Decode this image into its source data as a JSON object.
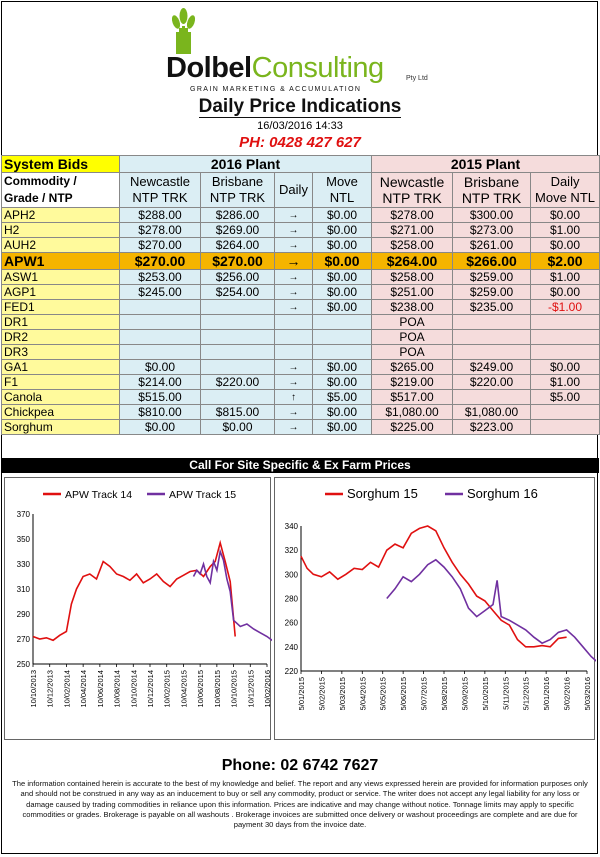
{
  "header": {
    "logo_part1": "Dolbel",
    "logo_part2": "Consulting",
    "logo_pty": "Pty Ltd",
    "logo_tagline": "GRAIN MARKETING & ACCUMULATION",
    "title": "Daily Price Indications",
    "datetime": "16/03/2016 14:33",
    "phone": "PH: 0428 427 627"
  },
  "table": {
    "system_bids": "System Bids",
    "plant_2016": "2016 Plant",
    "plant_2015": "2015 Plant",
    "commodity_header_line1": "Commodity /",
    "commodity_header_line2": "Grade / NTP",
    "col_newcastle_2016": "Newcastle NTP TRK",
    "col_brisbane_2016": "Brisbane NTP TRK",
    "col_daily_2016": "Daily",
    "col_move_2016": "Move NTL",
    "col_newcastle_2015": "Newcastle NTP TRK",
    "col_brisbane_2015": "Brisbane NTP TRK",
    "col_daily_2015": "Daily Move NTL",
    "rows": [
      {
        "grade": "APH2",
        "n16": "$288.00",
        "b16": "$286.00",
        "arrow": "→",
        "m16": "$0.00",
        "n15": "$278.00",
        "b15": "$300.00",
        "m15": "$0.00"
      },
      {
        "grade": "H2",
        "n16": "$278.00",
        "b16": "$269.00",
        "arrow": "→",
        "m16": "$0.00",
        "n15": "$271.00",
        "b15": "$273.00",
        "m15": "$1.00"
      },
      {
        "grade": "AUH2",
        "n16": "$270.00",
        "b16": "$264.00",
        "arrow": "→",
        "m16": "$0.00",
        "n15": "$258.00",
        "b15": "$261.00",
        "m15": "$0.00"
      },
      {
        "grade": "APW1",
        "n16": "$270.00",
        "b16": "$270.00",
        "arrow": "→",
        "m16": "$0.00",
        "n15": "$264.00",
        "b15": "$266.00",
        "m15": "$2.00"
      },
      {
        "grade": "ASW1",
        "n16": "$253.00",
        "b16": "$256.00",
        "arrow": "→",
        "m16": "$0.00",
        "n15": "$258.00",
        "b15": "$259.00",
        "m15": "$1.00"
      },
      {
        "grade": "AGP1",
        "n16": "$245.00",
        "b16": "$254.00",
        "arrow": "→",
        "m16": "$0.00",
        "n15": "$251.00",
        "b15": "$259.00",
        "m15": "$0.00"
      },
      {
        "grade": "FED1",
        "n16": "",
        "b16": "",
        "arrow": "→",
        "m16": "$0.00",
        "n15": "$238.00",
        "b15": "$235.00",
        "m15": "-$1.00"
      },
      {
        "grade": "DR1",
        "n16": "",
        "b16": "",
        "arrow": "",
        "m16": "",
        "n15": "POA",
        "b15": "",
        "m15": ""
      },
      {
        "grade": "DR2",
        "n16": "",
        "b16": "",
        "arrow": "",
        "m16": "",
        "n15": "POA",
        "b15": "",
        "m15": ""
      },
      {
        "grade": "DR3",
        "n16": "",
        "b16": "",
        "arrow": "",
        "m16": "",
        "n15": "POA",
        "b15": "",
        "m15": ""
      },
      {
        "grade": "GA1",
        "n16": "$0.00",
        "b16": "",
        "arrow": "→",
        "m16": "$0.00",
        "n15": "$265.00",
        "b15": "$249.00",
        "m15": "$0.00"
      },
      {
        "grade": "F1",
        "n16": "$214.00",
        "b16": "$220.00",
        "arrow": "→",
        "m16": "$0.00",
        "n15": "$219.00",
        "b15": "$220.00",
        "m15": "$1.00"
      },
      {
        "grade": "Canola",
        "n16": "$515.00",
        "b16": "",
        "arrow": "↑",
        "m16": "$5.00",
        "n15": "$517.00",
        "b15": "",
        "m15": "$5.00"
      },
      {
        "grade": "Chickpea",
        "n16": "$810.00",
        "b16": "$815.00",
        "arrow": "→",
        "m16": "$0.00",
        "n15": "$1,080.00",
        "b15": "$1,080.00",
        "m15": ""
      },
      {
        "grade": "Sorghum",
        "n16": "$0.00",
        "b16": "$0.00",
        "arrow": "→",
        "m16": "$0.00",
        "n15": "$225.00",
        "b15": "$223.00",
        "m15": ""
      }
    ]
  },
  "call_bar": "Call For Site Specific & Ex Farm Prices",
  "colors": {
    "red_series": "#e01010",
    "purple_series": "#7030a0",
    "plant_2016_bg": "#dbeef4",
    "plant_2015_bg": "#f5dcdc",
    "apw_highlight": "#f5b400"
  },
  "chart_data": [
    {
      "type": "line",
      "legend_position": "top",
      "grid": false,
      "ylim": [
        250,
        370
      ],
      "yticks": [
        250,
        270,
        290,
        310,
        330,
        350,
        370
      ],
      "xticks": [
        "10/10/2013",
        "10/12/2013",
        "10/02/2014",
        "10/04/2014",
        "10/06/2014",
        "10/08/2014",
        "10/10/2014",
        "10/12/2014",
        "10/02/2015",
        "10/04/2015",
        "10/06/2015",
        "10/08/2015",
        "10/10/2015",
        "10/12/2015",
        "10/02/2016"
      ],
      "series": [
        {
          "name": "APW Track 14",
          "color": "#e01010",
          "x": [
            0,
            0.4,
            0.8,
            1.2,
            1.6,
            2.0,
            2.3,
            2.6,
            3.0,
            3.4,
            3.8,
            4.2,
            4.6,
            5.0,
            5.4,
            5.8,
            6.2,
            6.6,
            7.0,
            7.4,
            7.8,
            8.2,
            8.6,
            9.0,
            9.4,
            9.8,
            10.2,
            10.6,
            10.9,
            11.2,
            11.5,
            11.8,
            12.1
          ],
          "y": [
            272,
            270,
            271,
            269,
            273,
            276,
            298,
            310,
            320,
            322,
            318,
            332,
            328,
            322,
            320,
            317,
            322,
            315,
            318,
            322,
            316,
            312,
            318,
            321,
            324,
            325,
            320,
            328,
            332,
            347,
            332,
            316,
            272
          ]
        },
        {
          "name": "APW Track 15",
          "color": "#7030a0",
          "x": [
            9.6,
            9.8,
            10.0,
            10.2,
            10.4,
            10.6,
            10.8,
            11.0,
            11.2,
            11.4,
            11.6,
            11.8,
            12.0,
            12.4,
            12.8,
            13.2,
            13.6,
            14.0,
            14.4,
            14.7
          ],
          "y": [
            320,
            325,
            322,
            330,
            320,
            315,
            332,
            325,
            340,
            333,
            318,
            308,
            285,
            280,
            282,
            278,
            275,
            272,
            268,
            262
          ]
        }
      ]
    },
    {
      "type": "line",
      "legend_position": "top",
      "grid": false,
      "ylim": [
        220,
        340
      ],
      "yticks": [
        220,
        240,
        260,
        280,
        300,
        320,
        340
      ],
      "xticks": [
        "5/01/2015",
        "5/02/2015",
        "5/03/2015",
        "5/04/2015",
        "5/05/2015",
        "5/06/2015",
        "5/07/2015",
        "5/08/2015",
        "5/09/2015",
        "5/10/2015",
        "5/11/2015",
        "5/12/2015",
        "5/01/2016",
        "5/02/2016",
        "5/03/2016"
      ],
      "series": [
        {
          "name": "Sorghum 15",
          "color": "#e01010",
          "x": [
            0,
            0.3,
            0.6,
            1.0,
            1.4,
            1.8,
            2.2,
            2.6,
            3.0,
            3.4,
            3.8,
            4.2,
            4.6,
            5.0,
            5.4,
            5.8,
            6.2,
            6.6,
            7.0,
            7.4,
            7.8,
            8.2,
            8.6,
            9.0,
            9.4,
            9.8,
            10.2,
            10.6,
            11.0,
            11.4,
            11.8,
            12.2,
            12.6,
            13.0
          ],
          "y": [
            315,
            305,
            300,
            298,
            302,
            296,
            300,
            305,
            304,
            310,
            306,
            320,
            325,
            322,
            334,
            338,
            340,
            336,
            322,
            310,
            300,
            292,
            282,
            278,
            270,
            262,
            258,
            246,
            240,
            240,
            241,
            240,
            247,
            248
          ]
        },
        {
          "name": "Sorghum 16",
          "color": "#7030a0",
          "x": [
            4.2,
            4.6,
            5.0,
            5.4,
            5.8,
            6.2,
            6.6,
            7.0,
            7.4,
            7.8,
            8.2,
            8.6,
            9.0,
            9.4,
            9.6,
            9.8,
            10.2,
            10.6,
            11.0,
            11.4,
            11.8,
            12.2,
            12.6,
            13.0,
            13.4,
            13.8,
            14.2,
            14.6,
            15.0
          ],
          "y": [
            280,
            288,
            298,
            294,
            300,
            308,
            312,
            306,
            298,
            288,
            272,
            265,
            270,
            275,
            295,
            265,
            262,
            258,
            254,
            248,
            243,
            246,
            252,
            254,
            248,
            240,
            232,
            226,
            225
          ]
        }
      ]
    }
  ],
  "footer": {
    "phone": "Phone: 02 6742 7627",
    "disclaimer": "The information contained herein is accurate to the best of my knowledge and belief. The report and any views expressed herein are provided for information purposes only and should not be construed in any way as an inducement to buy or sell any commodity, product or service. The writer does not accept any legal liability for any loss or damage caused by trading commodities in reliance upon this information. Prices are indicative and may change without notice. Tonnage limits may apply to specific commodities or grades. Brokerage is payable on all washouts . Brokerage invoices are submitted once delivery or washout proceedings are complete and are due for payment 30 days from the invoice date."
  }
}
